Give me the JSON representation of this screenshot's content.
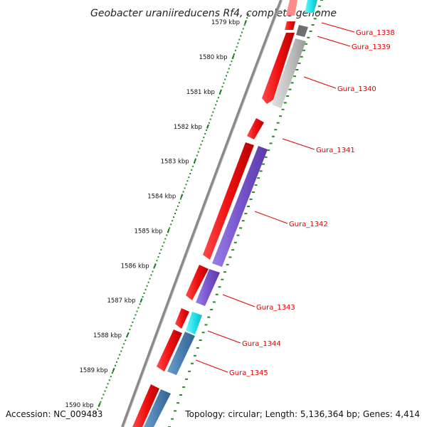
{
  "title": "Geobacter uraniireducens Rf4, complete genome",
  "footer": {
    "accession": "Accession: NC_009483",
    "summary": "Topology: circular; Length: 5,136,364 bp; Genes: 4,414"
  },
  "ruler": {
    "unit_suffix": " kbp",
    "ticks": [
      1579,
      1580,
      1581,
      1582,
      1583,
      1584,
      1585,
      1586,
      1587,
      1588,
      1589,
      1590
    ],
    "tick_color": "#1e7a1e",
    "dot_color": "#1e8a1e"
  },
  "gene_labels": [
    "Gura_1338",
    "Gura_1339",
    "Gura_1340",
    "Gura_1341",
    "Gura_1342",
    "Gura_1343",
    "Gura_1344",
    "Gura_1345"
  ],
  "colors": {
    "backbone": "#8a8a8a",
    "gene_red": "#ee1111",
    "gene_pink": "#ff6b6b",
    "cds_grey": "#bdbdbd",
    "cds_dark": "#6e6e6e",
    "cds_cyan": "#22e3ee",
    "cds_purple": "#7755cc",
    "cds_steel": "#4a7fb0",
    "label": "#e00000"
  }
}
